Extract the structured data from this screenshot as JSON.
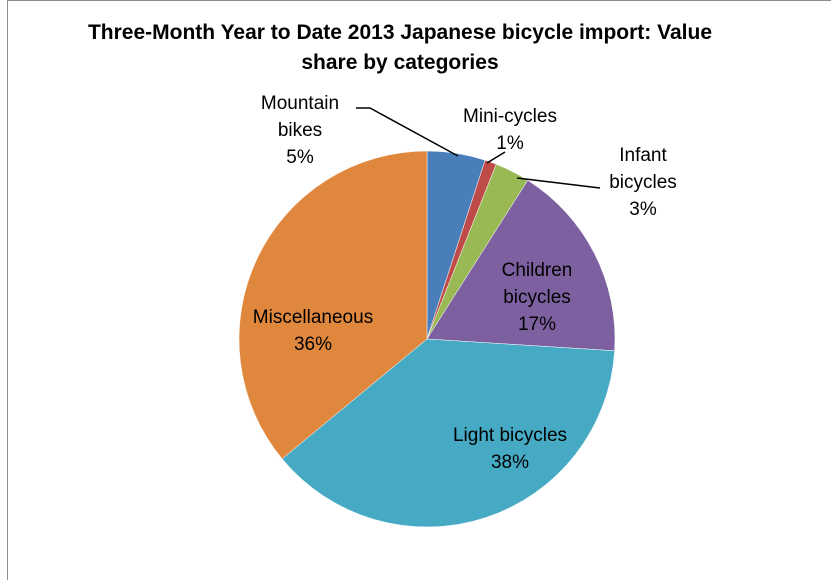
{
  "chart_data": {
    "type": "pie",
    "title": "Three-Month Year to Date 2013 Japanese bicycle import: Value share by categories",
    "categories": [
      "Mountain bikes",
      "Mini-cycles",
      "Infant bicycles",
      "Children bicycles",
      "Light bicycles",
      "Miscellaneous"
    ],
    "values": [
      5,
      1,
      3,
      17,
      38,
      36
    ],
    "value_labels": [
      "5%",
      "1%",
      "3%",
      "17%",
      "38%",
      "36%"
    ],
    "colors": [
      "#4a7ebb",
      "#be4b48",
      "#98b954",
      "#7d60a0",
      "#46aac5",
      "#e0873e"
    ]
  }
}
